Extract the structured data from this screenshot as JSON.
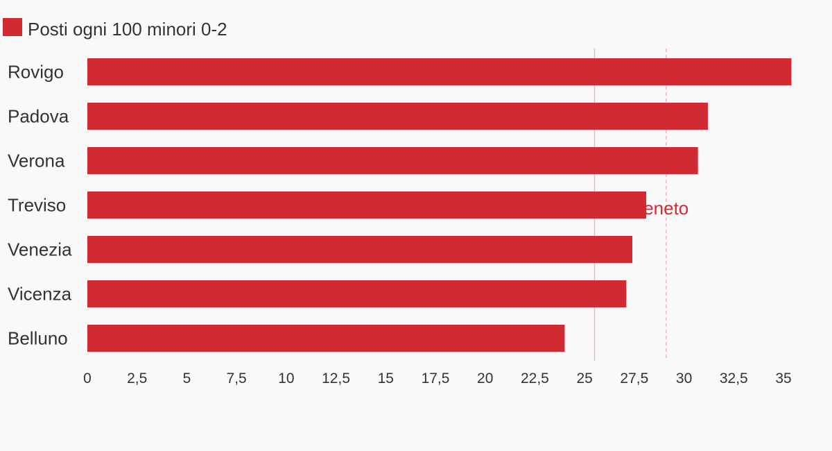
{
  "chart_data": {
    "type": "bar",
    "orientation": "horizontal",
    "title": "",
    "xlabel": "",
    "ylabel": "",
    "legend": {
      "position": "top-left",
      "entries": [
        {
          "name": "Posti ogni 100 minori 0-2",
          "color": "#d02b33"
        }
      ]
    },
    "categories": [
      "Rovigo",
      "Padova",
      "Verona",
      "Treviso",
      "Venezia",
      "Vicenza",
      "Belluno"
    ],
    "series": [
      {
        "name": "Posti ogni 100 minori 0-2",
        "color": "#d02b33",
        "values": [
          35.4,
          31.2,
          30.7,
          28.1,
          27.4,
          27.1,
          24.0
        ]
      }
    ],
    "xlim": [
      0,
      35
    ],
    "xticks": [
      0,
      2.5,
      5,
      7.5,
      10,
      12.5,
      15,
      17.5,
      20,
      22.5,
      25,
      27.5,
      30,
      32.5,
      35
    ],
    "xtick_labels": [
      "0",
      "2,5",
      "5",
      "7,5",
      "10",
      "12,5",
      "15",
      "17,5",
      "20",
      "22,5",
      "25",
      "27,5",
      "30",
      "32,5",
      "35"
    ],
    "reference_lines": [
      {
        "value": 25.5,
        "style": "solid",
        "color": "#f2b8bb",
        "label": ""
      },
      {
        "value": 29.1,
        "style": "dashed",
        "color": "#f2b8bb",
        "label": "eneto",
        "label_color": "#d02b33"
      }
    ],
    "grid": false
  }
}
